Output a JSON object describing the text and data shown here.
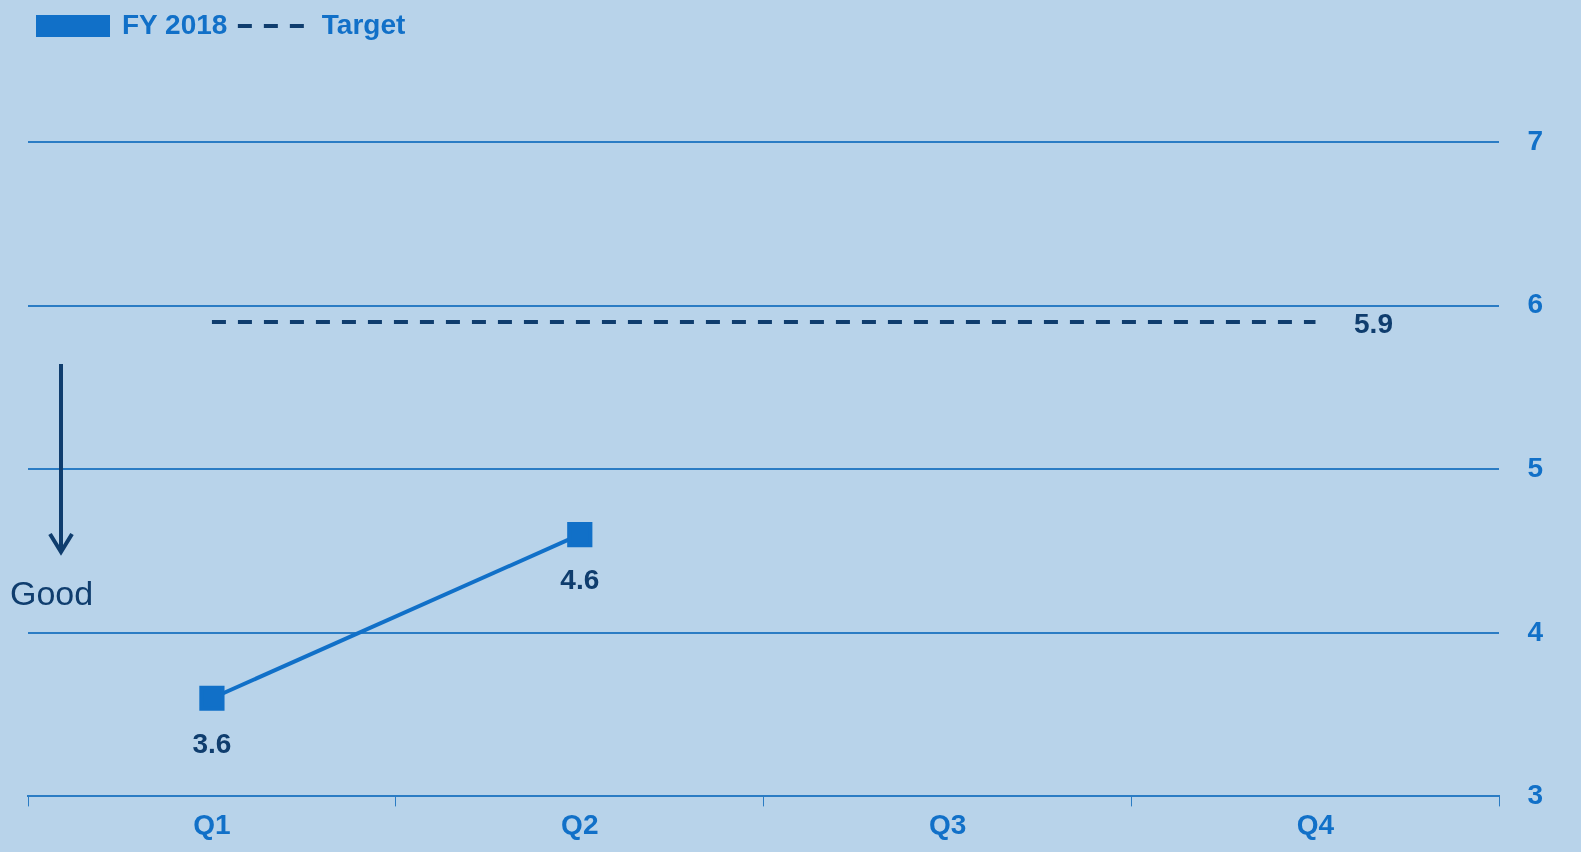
{
  "chart_data": {
    "type": "line",
    "categories": [
      "Q1",
      "Q2",
      "Q3",
      "Q4"
    ],
    "series": [
      {
        "name": "FY 2018",
        "color": "#1170c8",
        "values": [
          3.6,
          4.6,
          null,
          null
        ],
        "marker": "square",
        "line_style": "solid",
        "value_labels": [
          "3.6",
          "4.6",
          null,
          null
        ]
      },
      {
        "name": "Target",
        "color": "#0f3d6e",
        "values": [
          5.9,
          5.9,
          5.9,
          5.9
        ],
        "marker": "none",
        "line_style": "dashed",
        "value_labels": [
          null,
          null,
          null,
          "5.9"
        ]
      }
    ],
    "ylim": [
      3,
      7
    ],
    "yticks": [
      3,
      4,
      5,
      6,
      7
    ],
    "grid": "y",
    "legend": "top left",
    "annotations": [
      "Good"
    ]
  }
}
